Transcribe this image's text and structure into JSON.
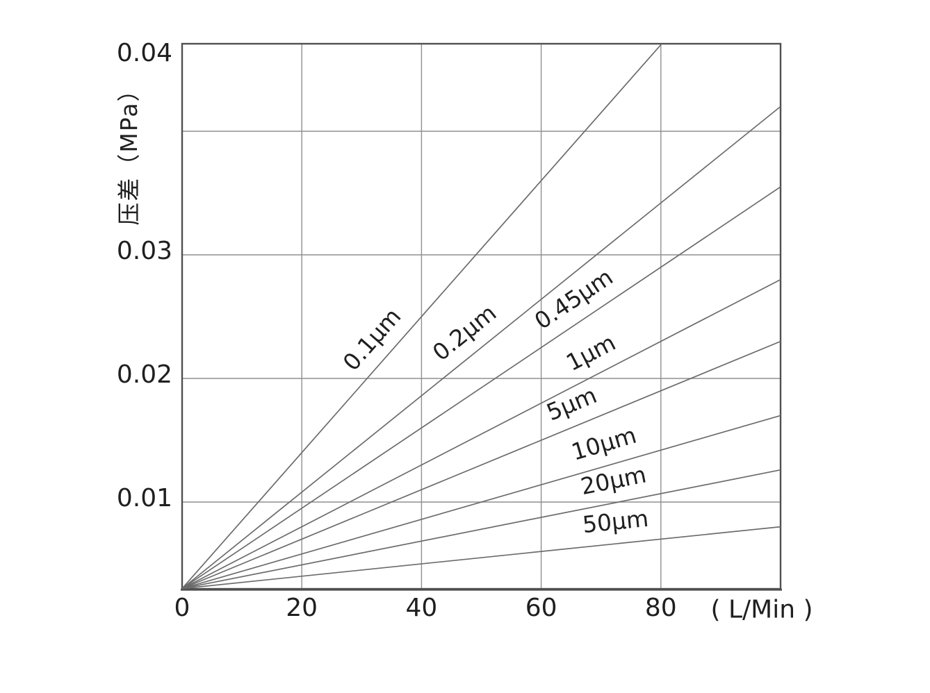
{
  "colors": {
    "background": "#ffffff",
    "text": "#1f1f1f",
    "curve": "#6b6b6b",
    "grid": "#8f8f8f",
    "border": "#4f4f4f"
  },
  "chart_data": {
    "type": "line",
    "title": "",
    "xlabel": "( L/Min )",
    "ylabel": "压差（MPa）",
    "xlim": [
      0,
      100
    ],
    "ylim": [
      0.003,
      0.047
    ],
    "grid": true,
    "legend_position": "inline-labels-on-lines",
    "x_ticks": [
      "0",
      "20",
      "40",
      "60",
      "80"
    ],
    "y_ticks": [
      "0.04",
      "0.03",
      "0.02",
      "0.01"
    ],
    "x_grid_values": [
      20,
      40,
      60,
      80
    ],
    "y_grid_values": [
      0.01,
      0.02,
      0.03,
      0.04
    ],
    "series": [
      {
        "name": "0.1μm",
        "x": [
          0,
          80
        ],
        "dp_mpa": [
          0.003,
          0.047
        ],
        "label_flow": 34.5
      },
      {
        "name": "0.2μm",
        "x": [
          0,
          100
        ],
        "dp_mpa": [
          0.003,
          0.042
        ],
        "label_flow": 49.5
      },
      {
        "name": "0.45μm",
        "x": [
          0,
          100
        ],
        "dp_mpa": [
          0.003,
          0.0355
        ],
        "label_flow": 67.5
      },
      {
        "name": "1μm",
        "x": [
          0,
          100
        ],
        "dp_mpa": [
          0.003,
          0.028
        ],
        "label_flow": 70.0
      },
      {
        "name": "5μm",
        "x": [
          0,
          100
        ],
        "dp_mpa": [
          0.003,
          0.023
        ],
        "label_flow": 66.5
      },
      {
        "name": "10μm",
        "x": [
          0,
          100
        ],
        "dp_mpa": [
          0.003,
          0.017
        ],
        "label_flow": 71.5
      },
      {
        "name": "20μm",
        "x": [
          0,
          100
        ],
        "dp_mpa": [
          0.003,
          0.0126
        ],
        "label_flow": 72.8
      },
      {
        "name": "50μm",
        "x": [
          0,
          100
        ],
        "dp_mpa": [
          0.003,
          0.008
        ],
        "label_flow": 72.8
      }
    ]
  }
}
